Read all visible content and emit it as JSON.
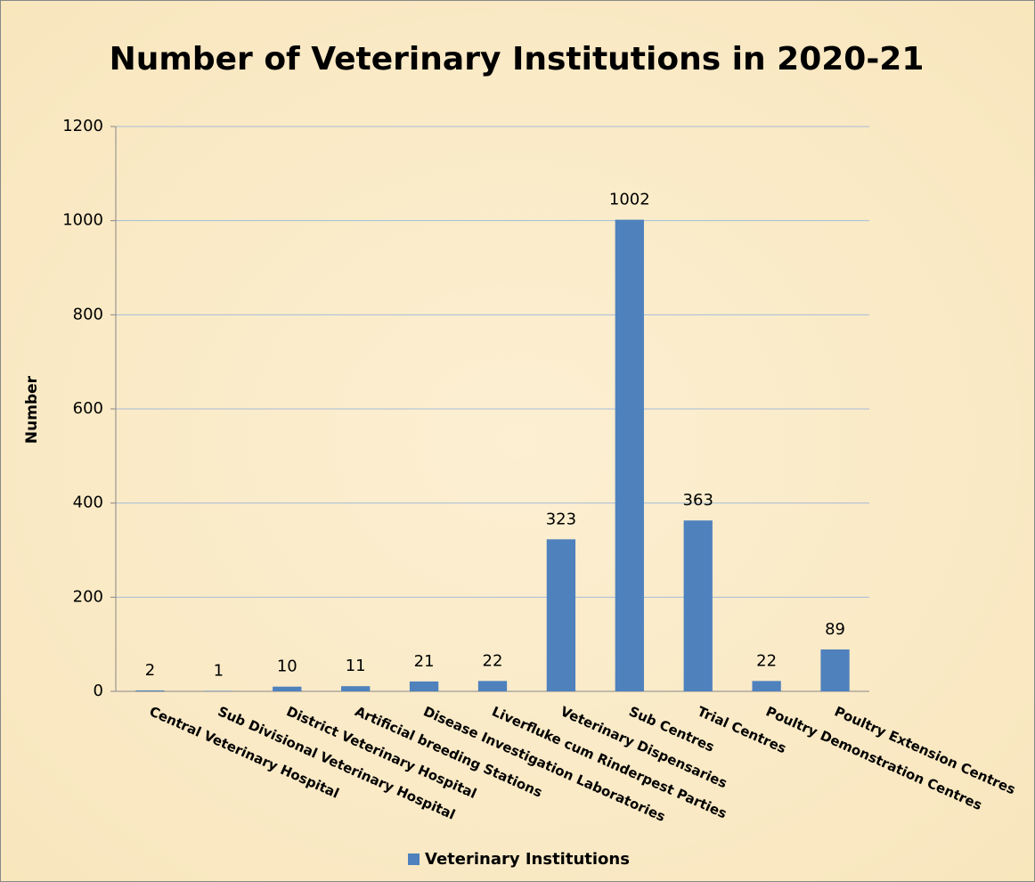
{
  "chart_data": {
    "type": "bar",
    "title": "Number of Veterinary Institutions in 2020-21",
    "y_label": "Number",
    "categories": [
      "Central Veterinary Hospital",
      "Sub Divisional Veterinary Hospital",
      "District Veterinary Hospital",
      "Artificial breeding Stations",
      "Disease Investigation Laboratories",
      "Liverfluke cum Rinderpest Parties",
      "Veterinary Dispensaries",
      "Sub Centres",
      "Trial Centres",
      "Poultry Demonstration Centres",
      "Poultry Extension Centres"
    ],
    "series": [
      {
        "name": "Veterinary Institutions",
        "color": "#4f81bd",
        "values": [
          2,
          1,
          10,
          11,
          21,
          22,
          323,
          1002,
          363,
          22,
          89
        ]
      }
    ],
    "ylim": [
      0,
      1200
    ],
    "yticks": [
      0,
      200,
      400,
      600,
      800,
      1000,
      1200
    ],
    "grid": true,
    "legend": "bottom"
  }
}
